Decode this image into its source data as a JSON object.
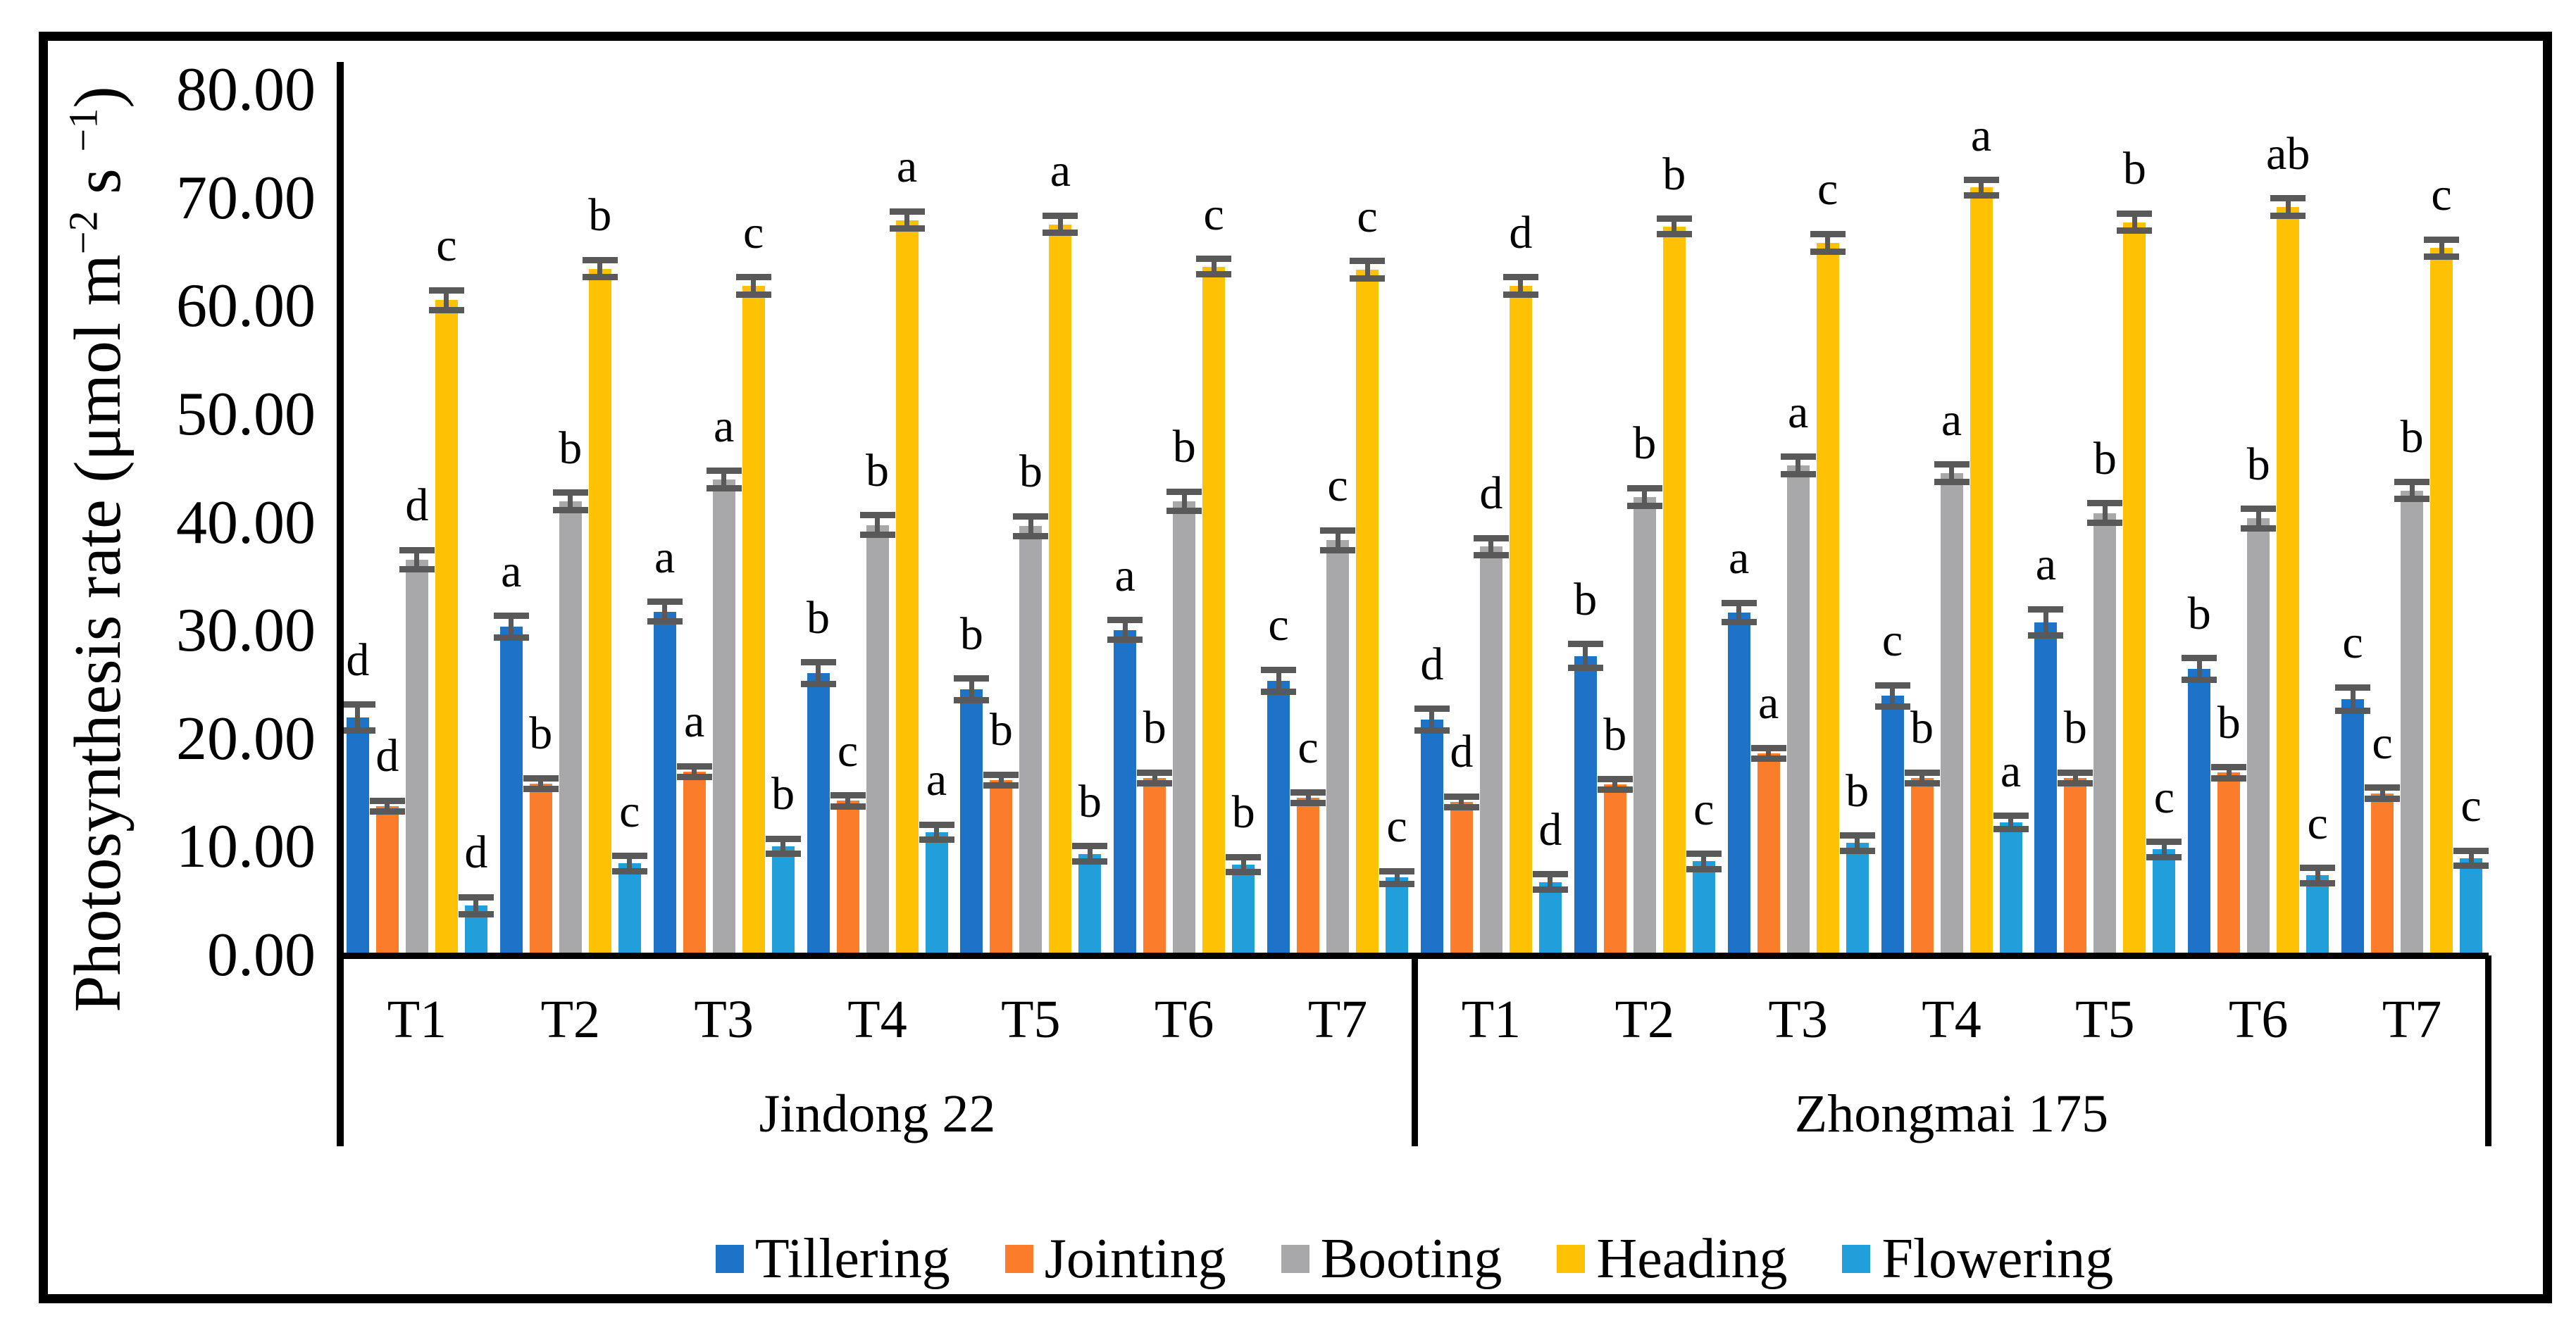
{
  "figure": {
    "background": "#ffffff",
    "border_color": "#000000"
  },
  "ylabel_parts": {
    "p1": "Photosynthesis rate (μmol m",
    "s1": "−2",
    "p2": " s ",
    "s2": "−1",
    "p3": ")"
  },
  "chart_data": {
    "type": "bar",
    "title": "",
    "xlabel": "",
    "ylabel": "Photosynthesis rate (μmol m⁻² s⁻¹)",
    "ylim": [
      0,
      80
    ],
    "ytick_step": 10,
    "y_ticks": [
      "0.00",
      "10.00",
      "20.00",
      "30.00",
      "40.00",
      "50.00",
      "60.00",
      "70.00",
      "80.00"
    ],
    "grid": false,
    "legend_position": "bottom",
    "error_bar_color": "#595959",
    "group_labels": [
      "Jindong 22",
      "Zhongmai 175"
    ],
    "categories": [
      "T1",
      "T2",
      "T3",
      "T4",
      "T5",
      "T6",
      "T7"
    ],
    "series": [
      {
        "name": "Tillering",
        "color": "#1C73C8",
        "groups": {
          "Jindong 22": {
            "values": [
              22.0,
              30.4,
              31.8,
              26.1,
              24.6,
              30.1,
              25.4
            ],
            "errors": [
              1.2,
              1.0,
              0.9,
              1.0,
              1.0,
              0.9,
              1.0
            ],
            "letters": [
              "d",
              "a",
              "a",
              "b",
              "b",
              "a",
              "c"
            ]
          },
          "Zhongmai 175": {
            "values": [
              21.8,
              27.7,
              31.7,
              24.0,
              30.8,
              26.5,
              23.7
            ],
            "errors": [
              1.0,
              1.1,
              0.9,
              1.0,
              1.2,
              1.0,
              1.1
            ],
            "letters": [
              "d",
              "b",
              "a",
              "c",
              "a",
              "b",
              "c"
            ]
          }
        }
      },
      {
        "name": "Jointing",
        "color": "#FB7D2B",
        "groups": {
          "Jindong 22": {
            "values": [
              13.8,
              15.9,
              17.0,
              14.3,
              16.2,
              16.4,
              14.6
            ],
            "errors": [
              0.5,
              0.5,
              0.5,
              0.5,
              0.5,
              0.5,
              0.5
            ],
            "letters": [
              "d",
              "b",
              "a",
              "c",
              "b",
              "b",
              "c"
            ]
          },
          "Zhongmai 175": {
            "values": [
              14.2,
              15.8,
              18.7,
              16.4,
              16.4,
              16.9,
              15.0
            ],
            "errors": [
              0.5,
              0.5,
              0.5,
              0.5,
              0.5,
              0.5,
              0.5
            ],
            "letters": [
              "d",
              "b",
              "a",
              "b",
              "b",
              "b",
              "c"
            ]
          }
        }
      },
      {
        "name": "Booting",
        "color": "#A8A8AA",
        "groups": {
          "Jindong 22": {
            "values": [
              36.6,
              42.0,
              44.0,
              39.8,
              39.7,
              42.0,
              38.4
            ],
            "errors": [
              0.9,
              0.8,
              0.8,
              0.9,
              0.9,
              0.9,
              0.9
            ],
            "letters": [
              "d",
              "b",
              "a",
              "b",
              "b",
              "b",
              "c"
            ]
          },
          "Zhongmai 175": {
            "values": [
              37.8,
              42.4,
              45.3,
              44.6,
              40.9,
              40.4,
              43.0
            ],
            "errors": [
              0.8,
              0.8,
              0.8,
              0.8,
              0.9,
              0.9,
              0.8
            ],
            "letters": [
              "d",
              "b",
              "a",
              "a",
              "b",
              "b",
              "b"
            ]
          }
        }
      },
      {
        "name": "Heading",
        "color": "#FFC104",
        "groups": {
          "Jindong 22": {
            "values": [
              60.6,
              63.5,
              61.9,
              68.0,
              67.6,
              63.7,
              63.4
            ],
            "errors": [
              0.9,
              0.8,
              0.8,
              0.8,
              0.8,
              0.7,
              0.8
            ],
            "letters": [
              "c",
              "b",
              "c",
              "a",
              "a",
              "c",
              "c"
            ]
          },
          "Zhongmai 175": {
            "values": [
              61.9,
              67.4,
              65.9,
              71.0,
              67.8,
              69.2,
              65.4
            ],
            "errors": [
              0.8,
              0.7,
              0.8,
              0.7,
              0.8,
              0.8,
              0.8
            ],
            "letters": [
              "d",
              "b",
              "c",
              "a",
              "b",
              "ab",
              "c"
            ]
          }
        }
      },
      {
        "name": "Flowering",
        "color": "#219FDB",
        "groups": {
          "Jindong 22": {
            "values": [
              4.6,
              8.5,
              10.1,
              11.4,
              9.4,
              8.4,
              7.2
            ],
            "errors": [
              0.8,
              0.7,
              0.7,
              0.7,
              0.7,
              0.7,
              0.6
            ],
            "letters": [
              "d",
              "c",
              "b",
              "a",
              "b",
              "b",
              "c"
            ]
          },
          "Zhongmai 175": {
            "values": [
              6.8,
              8.7,
              10.4,
              12.3,
              9.8,
              7.4,
              9.0
            ],
            "errors": [
              0.7,
              0.7,
              0.7,
              0.6,
              0.7,
              0.7,
              0.7
            ],
            "letters": [
              "d",
              "c",
              "b",
              "a",
              "c",
              "c",
              "c"
            ]
          }
        }
      }
    ]
  }
}
